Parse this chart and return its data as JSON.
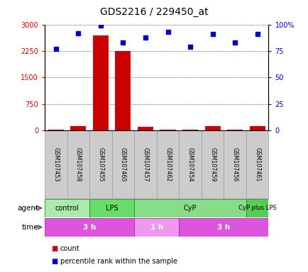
{
  "title": "GDS2216 / 229450_at",
  "samples": [
    "GSM107453",
    "GSM107458",
    "GSM107455",
    "GSM107460",
    "GSM107457",
    "GSM107462",
    "GSM107454",
    "GSM107459",
    "GSM107456",
    "GSM107461"
  ],
  "counts": [
    20,
    120,
    2700,
    2250,
    100,
    20,
    30,
    120,
    30,
    120
  ],
  "percentiles": [
    77,
    92,
    99,
    83,
    88,
    93,
    79,
    91,
    83,
    91
  ],
  "ylim_left": [
    0,
    3000
  ],
  "ylim_right": [
    0,
    100
  ],
  "yticks_left": [
    0,
    750,
    1500,
    2250,
    3000
  ],
  "yticks_right": [
    0,
    25,
    50,
    75,
    100
  ],
  "ytick_labels_left": [
    "0",
    "750",
    "1500",
    "2250",
    "3000"
  ],
  "ytick_labels_right": [
    "0",
    "25",
    "50",
    "75",
    "100%"
  ],
  "agent_groups": [
    {
      "label": "control",
      "start": 0,
      "end": 2,
      "color": "#aaeaaa"
    },
    {
      "label": "LPS",
      "start": 2,
      "end": 4,
      "color": "#66dd66"
    },
    {
      "label": "CyP",
      "start": 4,
      "end": 9,
      "color": "#88dd88"
    },
    {
      "label": "CyP plus LPS",
      "start": 9,
      "end": 10,
      "color": "#55cc55"
    }
  ],
  "time_groups": [
    {
      "label": "3 h",
      "start": 0,
      "end": 4,
      "color": "#dd55dd"
    },
    {
      "label": "1 h",
      "start": 4,
      "end": 6,
      "color": "#ee99ee"
    },
    {
      "label": "3 h",
      "start": 6,
      "end": 10,
      "color": "#dd55dd"
    }
  ],
  "bar_color": "#cc0000",
  "scatter_color": "#0000cc",
  "sample_bg_color": "#cccccc",
  "sample_border_color": "#999999",
  "agent_label": "agent",
  "time_label": "time",
  "legend_count_label": "count",
  "legend_pct_label": "percentile rank within the sample"
}
